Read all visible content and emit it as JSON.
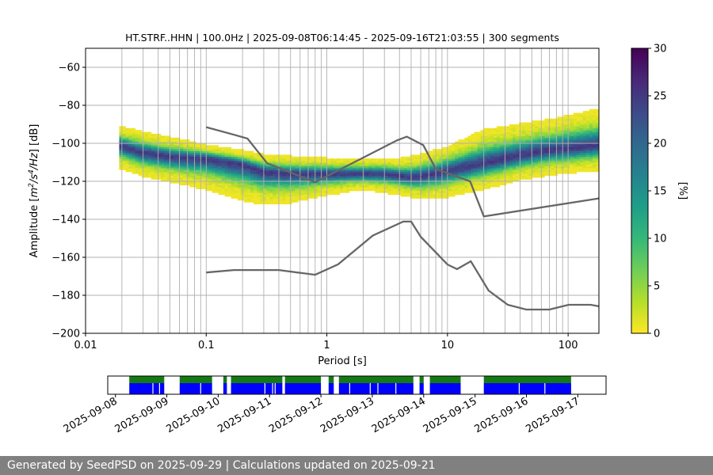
{
  "chart_data": {
    "type": "heatmap",
    "title": "HT.STRF..HHN | 100.0Hz | 2025-09-08T06:14:45 - 2025-09-16T21:03:55 | 300 segments",
    "xlabel": "Period [s]",
    "ylabel_parts": [
      "Amplitude [",
      "m",
      "2",
      "/",
      "s",
      "4",
      "/",
      "Hz",
      "] [dB]"
    ],
    "x_scale": "log",
    "xlim": [
      0.01,
      180
    ],
    "ylim": [
      -200,
      -50
    ],
    "x_ticks": [
      {
        "value": 0.01,
        "label": "0.01"
      },
      {
        "value": 0.1,
        "label": "0.1"
      },
      {
        "value": 1,
        "label": "1"
      },
      {
        "value": 10,
        "label": "10"
      },
      {
        "value": 100,
        "label": "100"
      }
    ],
    "y_ticks": [
      {
        "value": -60,
        "label": "−60"
      },
      {
        "value": -80,
        "label": "−80"
      },
      {
        "value": -100,
        "label": "−100"
      },
      {
        "value": -120,
        "label": "−120"
      },
      {
        "value": -140,
        "label": "−140"
      },
      {
        "value": -160,
        "label": "−160"
      },
      {
        "value": -180,
        "label": "−180"
      },
      {
        "value": -200,
        "label": "−200"
      }
    ],
    "grid": true,
    "colorbar": {
      "label": "[%]",
      "range": [
        0,
        30
      ],
      "ticks": [
        {
          "value": 0,
          "label": "0"
        },
        {
          "value": 5,
          "label": "5"
        },
        {
          "value": 10,
          "label": "10"
        },
        {
          "value": 15,
          "label": "15"
        },
        {
          "value": 20,
          "label": "20"
        },
        {
          "value": 25,
          "label": "25"
        },
        {
          "value": 30,
          "label": "30"
        }
      ],
      "colormap": [
        "#fde725",
        "#b5de2b",
        "#6ece58",
        "#35b779",
        "#1f9e89",
        "#26828e",
        "#31688e",
        "#3e4989",
        "#482878",
        "#440154"
      ]
    },
    "psd_density": {
      "period_start": 0.019,
      "period_end": 180,
      "mode_path": [
        [
          0.019,
          -101
        ],
        [
          0.03,
          -105
        ],
        [
          0.05,
          -107
        ],
        [
          0.1,
          -108
        ],
        [
          0.2,
          -111
        ],
        [
          0.3,
          -115
        ],
        [
          0.5,
          -116
        ],
        [
          1,
          -116
        ],
        [
          2,
          -116
        ],
        [
          3,
          -116
        ],
        [
          5,
          -118
        ],
        [
          8,
          -116
        ],
        [
          15,
          -112
        ],
        [
          30,
          -108
        ],
        [
          60,
          -104
        ],
        [
          180,
          -101
        ]
      ],
      "upper_edge": [
        [
          0.019,
          -91
        ],
        [
          0.03,
          -94
        ],
        [
          0.05,
          -97
        ],
        [
          0.1,
          -101
        ],
        [
          0.2,
          -104
        ],
        [
          0.3,
          -106
        ],
        [
          0.5,
          -107
        ],
        [
          1,
          -108
        ],
        [
          2,
          -108
        ],
        [
          4,
          -108
        ],
        [
          6,
          -106
        ],
        [
          10,
          -102
        ],
        [
          20,
          -93
        ],
        [
          40,
          -90
        ],
        [
          80,
          -87
        ],
        [
          180,
          -82
        ]
      ],
      "lower_edge": [
        [
          0.019,
          -113
        ],
        [
          0.03,
          -117
        ],
        [
          0.05,
          -120
        ],
        [
          0.1,
          -124
        ],
        [
          0.2,
          -130
        ],
        [
          0.3,
          -132
        ],
        [
          0.5,
          -131
        ],
        [
          1,
          -127
        ],
        [
          2,
          -124
        ],
        [
          4,
          -127
        ],
        [
          6,
          -129
        ],
        [
          10,
          -128
        ],
        [
          20,
          -124
        ],
        [
          40,
          -119
        ],
        [
          80,
          -116
        ],
        [
          180,
          -114
        ]
      ]
    },
    "model_curves": [
      {
        "name": "high-noise-model",
        "points": [
          [
            0.1,
            -91.5
          ],
          [
            0.17,
            -95.5
          ],
          [
            0.22,
            -97.5
          ],
          [
            0.32,
            -110.5
          ],
          [
            0.8,
            -120.5
          ],
          [
            3.8,
            -98.5
          ],
          [
            4.6,
            -96.5
          ],
          [
            6.3,
            -101
          ],
          [
            8,
            -113.5
          ],
          [
            15.4,
            -120
          ],
          [
            20,
            -138.5
          ],
          [
            180,
            -129
          ]
        ]
      },
      {
        "name": "low-noise-model",
        "points": [
          [
            0.1,
            -168
          ],
          [
            0.17,
            -166.7
          ],
          [
            0.4,
            -166.7
          ],
          [
            0.8,
            -169.2
          ],
          [
            1.24,
            -163.7
          ],
          [
            2.4,
            -148.6
          ],
          [
            4.3,
            -141.2
          ],
          [
            5.0,
            -141.2
          ],
          [
            6.0,
            -149.2
          ],
          [
            10,
            -163.8
          ],
          [
            12,
            -166.2
          ],
          [
            15.6,
            -162.1
          ],
          [
            21.9,
            -177.5
          ],
          [
            31.6,
            -185
          ],
          [
            45,
            -187.5
          ],
          [
            70,
            -187.5
          ],
          [
            101,
            -185
          ],
          [
            154,
            -185
          ],
          [
            180,
            -185.8
          ]
        ]
      }
    ],
    "availability": {
      "tick_labels": [
        "2025-09-08",
        "2025-09-09",
        "2025-09-10",
        "2025-09-11",
        "2025-09-12",
        "2025-09-13",
        "2025-09-14",
        "2025-09-15",
        "2025-09-16",
        "2025-09-17"
      ],
      "start_day": 7.85,
      "end_day": 17.55,
      "segments_days": [
        [
          8.27,
          8.95
        ],
        [
          9.25,
          9.88
        ],
        [
          10.1,
          10.17
        ],
        [
          10.25,
          11.25
        ],
        [
          11.3,
          12.0
        ],
        [
          12.15,
          12.25
        ],
        [
          12.35,
          13.8
        ],
        [
          13.92,
          14.0
        ],
        [
          14.12,
          14.72
        ],
        [
          15.17,
          16.87
        ]
      ]
    }
  },
  "footer": {
    "text": "Generated by SeedPSD on 2025-09-29 | Calculations updated on 2025-09-21"
  }
}
